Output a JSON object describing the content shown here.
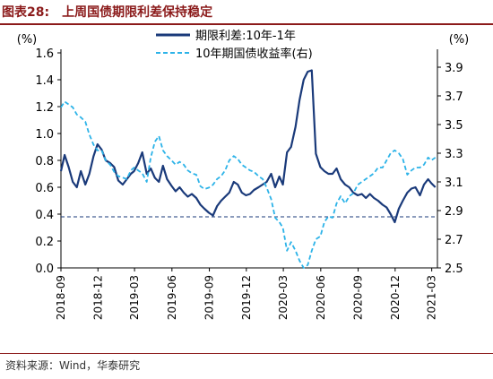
{
  "header": {
    "figure_label": "图表28:",
    "title": "上周国债期限利差保持稳定"
  },
  "footer": {
    "source": "资料来源：Wind，华泰研究"
  },
  "colors": {
    "title": "#8b1a1a",
    "spread": "#1a3a7a",
    "yield": "#2db3e8",
    "reference": "#1a3a7a"
  },
  "chart_data": {
    "type": "line",
    "left_axis": {
      "unit_label": "(%)",
      "ylim": [
        0.0,
        1.6
      ],
      "ticks": [
        "0.0",
        "0.2",
        "0.4",
        "0.6",
        "0.8",
        "1.0",
        "1.2",
        "1.4",
        "1.6"
      ]
    },
    "right_axis": {
      "unit_label": "(%)",
      "ylim": [
        2.5,
        4.0
      ],
      "ticks": [
        "2.5",
        "2.7",
        "2.9",
        "3.1",
        "3.3",
        "3.5",
        "3.7",
        "3.9"
      ]
    },
    "x_ticks": [
      "2018-09",
      "2018-12",
      "2019-03",
      "2019-06",
      "2019-09",
      "2019-12",
      "2020-03",
      "2020-06",
      "2020-09",
      "2020-12",
      "2021-03"
    ],
    "x_range": [
      "2018-09-01",
      "2021-03-15"
    ],
    "reference_line": {
      "axis": "left",
      "value": 0.38
    },
    "legend_position": "top-center",
    "series": [
      {
        "name": "期限利差:10年-1年",
        "axis": "left",
        "style": "solid",
        "points": [
          [
            "2018-09-01",
            0.72
          ],
          [
            "2018-09-10",
            0.84
          ],
          [
            "2018-09-20",
            0.75
          ],
          [
            "2018-09-30",
            0.64
          ],
          [
            "2018-10-10",
            0.6
          ],
          [
            "2018-10-20",
            0.72
          ],
          [
            "2018-10-31",
            0.62
          ],
          [
            "2018-11-10",
            0.7
          ],
          [
            "2018-11-20",
            0.83
          ],
          [
            "2018-11-30",
            0.92
          ],
          [
            "2018-12-10",
            0.88
          ],
          [
            "2018-12-20",
            0.8
          ],
          [
            "2018-12-31",
            0.78
          ],
          [
            "2019-01-10",
            0.75
          ],
          [
            "2019-01-20",
            0.65
          ],
          [
            "2019-01-31",
            0.62
          ],
          [
            "2019-02-10",
            0.66
          ],
          [
            "2019-02-20",
            0.7
          ],
          [
            "2019-02-28",
            0.72
          ],
          [
            "2019-03-10",
            0.78
          ],
          [
            "2019-03-20",
            0.86
          ],
          [
            "2019-03-31",
            0.7
          ],
          [
            "2019-04-10",
            0.74
          ],
          [
            "2019-04-20",
            0.67
          ],
          [
            "2019-04-30",
            0.64
          ],
          [
            "2019-05-10",
            0.76
          ],
          [
            "2019-05-20",
            0.66
          ],
          [
            "2019-05-31",
            0.61
          ],
          [
            "2019-06-10",
            0.57
          ],
          [
            "2019-06-20",
            0.6
          ],
          [
            "2019-06-30",
            0.56
          ],
          [
            "2019-07-10",
            0.53
          ],
          [
            "2019-07-20",
            0.55
          ],
          [
            "2019-07-31",
            0.52
          ],
          [
            "2019-08-10",
            0.47
          ],
          [
            "2019-08-20",
            0.44
          ],
          [
            "2019-08-31",
            0.41
          ],
          [
            "2019-09-10",
            0.39
          ],
          [
            "2019-09-20",
            0.46
          ],
          [
            "2019-09-30",
            0.5
          ],
          [
            "2019-10-10",
            0.53
          ],
          [
            "2019-10-20",
            0.56
          ],
          [
            "2019-10-31",
            0.64
          ],
          [
            "2019-11-10",
            0.62
          ],
          [
            "2019-11-20",
            0.56
          ],
          [
            "2019-11-30",
            0.54
          ],
          [
            "2019-12-10",
            0.55
          ],
          [
            "2019-12-20",
            0.58
          ],
          [
            "2019-12-31",
            0.6
          ],
          [
            "2020-01-10",
            0.62
          ],
          [
            "2020-01-20",
            0.64
          ],
          [
            "2020-01-31",
            0.7
          ],
          [
            "2020-02-10",
            0.6
          ],
          [
            "2020-02-20",
            0.68
          ],
          [
            "2020-02-29",
            0.62
          ],
          [
            "2020-03-10",
            0.86
          ],
          [
            "2020-03-20",
            0.9
          ],
          [
            "2020-03-31",
            1.05
          ],
          [
            "2020-04-10",
            1.25
          ],
          [
            "2020-04-20",
            1.4
          ],
          [
            "2020-04-30",
            1.46
          ],
          [
            "2020-05-10",
            1.47
          ],
          [
            "2020-05-20",
            0.85
          ],
          [
            "2020-05-31",
            0.75
          ],
          [
            "2020-06-10",
            0.72
          ],
          [
            "2020-06-20",
            0.7
          ],
          [
            "2020-06-30",
            0.7
          ],
          [
            "2020-07-10",
            0.74
          ],
          [
            "2020-07-20",
            0.66
          ],
          [
            "2020-07-31",
            0.62
          ],
          [
            "2020-08-10",
            0.6
          ],
          [
            "2020-08-20",
            0.56
          ],
          [
            "2020-08-31",
            0.54
          ],
          [
            "2020-09-10",
            0.55
          ],
          [
            "2020-09-20",
            0.52
          ],
          [
            "2020-09-30",
            0.55
          ],
          [
            "2020-10-10",
            0.52
          ],
          [
            "2020-10-20",
            0.5
          ],
          [
            "2020-10-31",
            0.47
          ],
          [
            "2020-11-10",
            0.45
          ],
          [
            "2020-11-20",
            0.4
          ],
          [
            "2020-11-30",
            0.34
          ],
          [
            "2020-12-10",
            0.44
          ],
          [
            "2020-12-20",
            0.5
          ],
          [
            "2020-12-31",
            0.56
          ],
          [
            "2021-01-10",
            0.59
          ],
          [
            "2021-01-20",
            0.6
          ],
          [
            "2021-01-31",
            0.54
          ],
          [
            "2021-02-10",
            0.62
          ],
          [
            "2021-02-20",
            0.66
          ],
          [
            "2021-02-28",
            0.63
          ],
          [
            "2021-03-10",
            0.6
          ]
        ]
      },
      {
        "name": "10年期国债收益率(右)",
        "axis": "right",
        "style": "dashed",
        "points": [
          [
            "2018-09-01",
            3.62
          ],
          [
            "2018-09-10",
            3.66
          ],
          [
            "2018-09-20",
            3.64
          ],
          [
            "2018-09-30",
            3.62
          ],
          [
            "2018-10-10",
            3.57
          ],
          [
            "2018-10-20",
            3.55
          ],
          [
            "2018-10-31",
            3.52
          ],
          [
            "2018-11-10",
            3.43
          ],
          [
            "2018-11-20",
            3.36
          ],
          [
            "2018-11-30",
            3.32
          ],
          [
            "2018-12-10",
            3.32
          ],
          [
            "2018-12-20",
            3.25
          ],
          [
            "2018-12-31",
            3.22
          ],
          [
            "2019-01-10",
            3.17
          ],
          [
            "2019-01-20",
            3.14
          ],
          [
            "2019-01-31",
            3.13
          ],
          [
            "2019-02-10",
            3.12
          ],
          [
            "2019-02-20",
            3.18
          ],
          [
            "2019-02-28",
            3.2
          ],
          [
            "2019-03-10",
            3.18
          ],
          [
            "2019-03-20",
            3.16
          ],
          [
            "2019-03-31",
            3.1
          ],
          [
            "2019-04-10",
            3.27
          ],
          [
            "2019-04-20",
            3.38
          ],
          [
            "2019-04-30",
            3.42
          ],
          [
            "2019-05-10",
            3.32
          ],
          [
            "2019-05-20",
            3.28
          ],
          [
            "2019-05-31",
            3.25
          ],
          [
            "2019-06-10",
            3.22
          ],
          [
            "2019-06-20",
            3.24
          ],
          [
            "2019-06-30",
            3.22
          ],
          [
            "2019-07-10",
            3.18
          ],
          [
            "2019-07-20",
            3.16
          ],
          [
            "2019-07-31",
            3.15
          ],
          [
            "2019-08-10",
            3.07
          ],
          [
            "2019-08-20",
            3.05
          ],
          [
            "2019-08-31",
            3.06
          ],
          [
            "2019-09-10",
            3.08
          ],
          [
            "2019-09-20",
            3.12
          ],
          [
            "2019-09-30",
            3.14
          ],
          [
            "2019-10-10",
            3.18
          ],
          [
            "2019-10-20",
            3.25
          ],
          [
            "2019-10-31",
            3.28
          ],
          [
            "2019-11-10",
            3.26
          ],
          [
            "2019-11-20",
            3.22
          ],
          [
            "2019-11-30",
            3.2
          ],
          [
            "2019-12-10",
            3.18
          ],
          [
            "2019-12-20",
            3.17
          ],
          [
            "2019-12-31",
            3.14
          ],
          [
            "2020-01-10",
            3.12
          ],
          [
            "2020-01-20",
            3.06
          ],
          [
            "2020-01-31",
            2.98
          ],
          [
            "2020-02-10",
            2.85
          ],
          [
            "2020-02-20",
            2.82
          ],
          [
            "2020-02-29",
            2.78
          ],
          [
            "2020-03-10",
            2.62
          ],
          [
            "2020-03-20",
            2.68
          ],
          [
            "2020-03-31",
            2.62
          ],
          [
            "2020-04-10",
            2.55
          ],
          [
            "2020-04-20",
            2.5
          ],
          [
            "2020-04-30",
            2.52
          ],
          [
            "2020-05-10",
            2.62
          ],
          [
            "2020-05-20",
            2.7
          ],
          [
            "2020-05-31",
            2.72
          ],
          [
            "2020-06-10",
            2.82
          ],
          [
            "2020-06-20",
            2.86
          ],
          [
            "2020-06-30",
            2.85
          ],
          [
            "2020-07-10",
            2.95
          ],
          [
            "2020-07-20",
            3.0
          ],
          [
            "2020-07-31",
            2.95
          ],
          [
            "2020-08-10",
            3.0
          ],
          [
            "2020-08-20",
            3.02
          ],
          [
            "2020-08-31",
            3.08
          ],
          [
            "2020-09-10",
            3.1
          ],
          [
            "2020-09-20",
            3.12
          ],
          [
            "2020-09-30",
            3.14
          ],
          [
            "2020-10-10",
            3.16
          ],
          [
            "2020-10-20",
            3.2
          ],
          [
            "2020-10-31",
            3.2
          ],
          [
            "2020-11-10",
            3.25
          ],
          [
            "2020-11-20",
            3.3
          ],
          [
            "2020-11-30",
            3.32
          ],
          [
            "2020-12-10",
            3.3
          ],
          [
            "2020-12-20",
            3.26
          ],
          [
            "2020-12-31",
            3.15
          ],
          [
            "2021-01-10",
            3.18
          ],
          [
            "2021-01-20",
            3.2
          ],
          [
            "2021-01-31",
            3.2
          ],
          [
            "2021-02-10",
            3.22
          ],
          [
            "2021-02-20",
            3.27
          ],
          [
            "2021-02-28",
            3.25
          ],
          [
            "2021-03-10",
            3.27
          ]
        ]
      }
    ]
  }
}
